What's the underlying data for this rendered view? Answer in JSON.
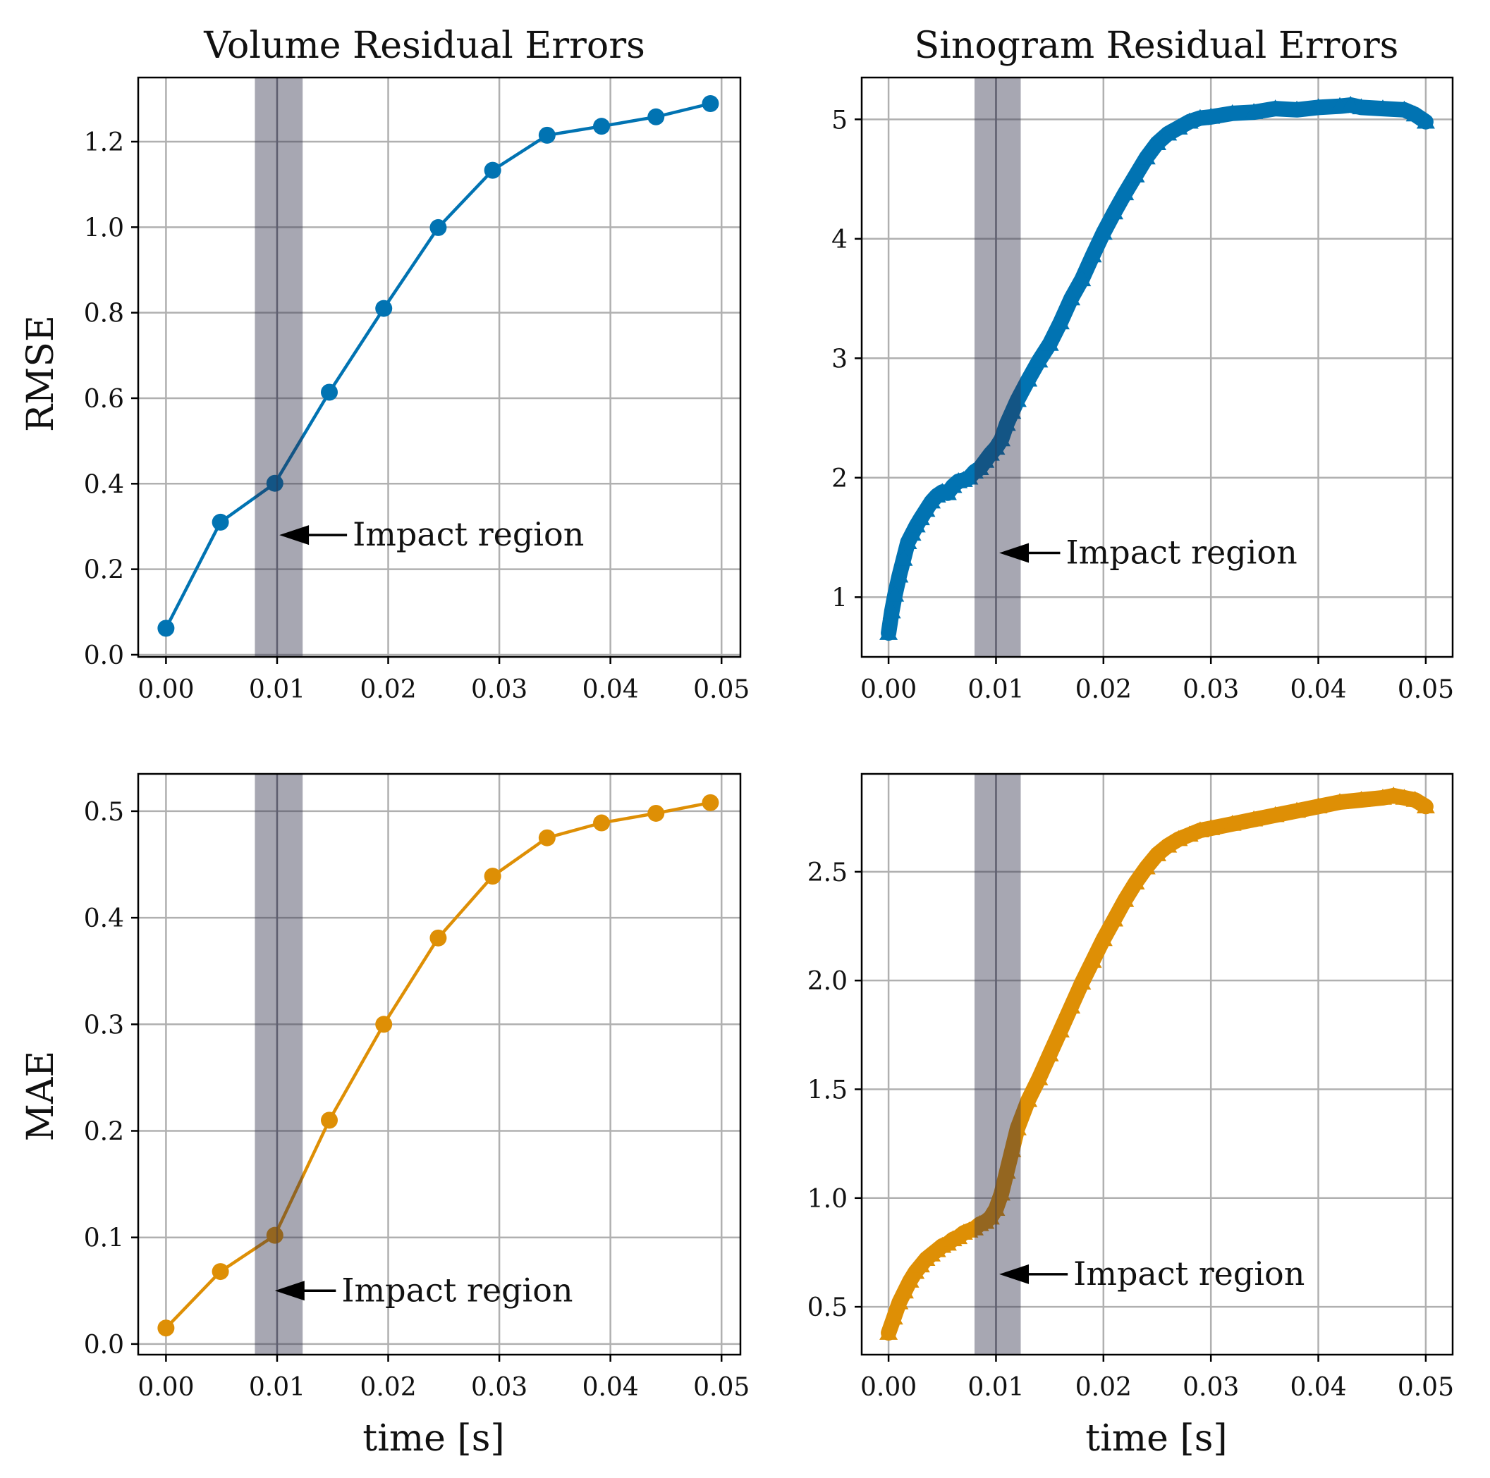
{
  "figure": {
    "shared_xlabel": "time [s]",
    "row_ylabels": [
      "RMSE",
      "MAE"
    ],
    "column_titles": [
      "Volume Residual Errors",
      "Sinogram Residual Errors"
    ]
  },
  "colors": {
    "rmse_series": "#0173b2",
    "mae_series": "#de8f05",
    "impact_band": "#2e2e48",
    "grid": "#b0b0b0",
    "axes": "#000000"
  },
  "chart_data": [
    {
      "id": "volume-rmse",
      "type": "line",
      "title": "Volume Residual Errors",
      "xlabel": "",
      "ylabel": "RMSE",
      "marker": "circle",
      "color": "#0173b2",
      "xlim": [
        -0.0025,
        0.0517
      ],
      "ylim": [
        -0.005,
        1.35
      ],
      "xticks": [
        0.0,
        0.01,
        0.02,
        0.03,
        0.04,
        0.05
      ],
      "xtick_labels": [
        "0.00",
        "0.01",
        "0.02",
        "0.03",
        "0.04",
        "0.05"
      ],
      "yticks": [
        0.0,
        0.2,
        0.4,
        0.6,
        0.8,
        1.0,
        1.2
      ],
      "ytick_labels": [
        "0.0",
        "0.2",
        "0.4",
        "0.6",
        "0.8",
        "1.0",
        "1.2"
      ],
      "grid": true,
      "impact_region": [
        0.008,
        0.0123
      ],
      "impact_line": 0.01,
      "annotation": {
        "text": "Impact region",
        "arrow_tip": [
          0.0102,
          0.28
        ],
        "text_x": 0.0168,
        "text_y": 0.28
      },
      "x": [
        0.0,
        0.0049,
        0.0098,
        0.0147,
        0.0196,
        0.0245,
        0.0294,
        0.0343,
        0.0392,
        0.0441,
        0.049
      ],
      "y": [
        0.062,
        0.31,
        0.401,
        0.614,
        0.81,
        0.999,
        1.133,
        1.215,
        1.236,
        1.258,
        1.289
      ]
    },
    {
      "id": "sinogram-rmse",
      "type": "line",
      "title": "Sinogram Residual Errors",
      "xlabel": "",
      "ylabel": "",
      "marker": "triangle",
      "dense": true,
      "color": "#0173b2",
      "xlim": [
        -0.0025,
        0.0525
      ],
      "ylim": [
        0.5,
        5.35
      ],
      "xticks": [
        0.0,
        0.01,
        0.02,
        0.03,
        0.04,
        0.05
      ],
      "xtick_labels": [
        "0.00",
        "0.01",
        "0.02",
        "0.03",
        "0.04",
        "0.05"
      ],
      "yticks": [
        1,
        2,
        3,
        4,
        5
      ],
      "ytick_labels": [
        "1",
        "2",
        "3",
        "4",
        "5"
      ],
      "grid": true,
      "impact_region": [
        0.008,
        0.0123
      ],
      "impact_line": 0.01,
      "annotation": {
        "text": "Impact region",
        "arrow_tip": [
          0.0103,
          1.37
        ],
        "text_x": 0.0165,
        "text_y": 1.37
      },
      "x": [
        0.0,
        0.0003,
        0.0006,
        0.001,
        0.0014,
        0.0018,
        0.0022,
        0.0026,
        0.003,
        0.0035,
        0.004,
        0.0045,
        0.005,
        0.0055,
        0.006,
        0.0065,
        0.007,
        0.0075,
        0.008,
        0.0085,
        0.009,
        0.0095,
        0.01,
        0.0105,
        0.011,
        0.0115,
        0.012,
        0.013,
        0.014,
        0.015,
        0.016,
        0.017,
        0.018,
        0.019,
        0.02,
        0.021,
        0.022,
        0.023,
        0.024,
        0.025,
        0.026,
        0.027,
        0.028,
        0.029,
        0.03,
        0.032,
        0.034,
        0.036,
        0.038,
        0.04,
        0.042,
        0.043,
        0.044,
        0.046,
        0.048,
        0.049,
        0.05
      ],
      "y": [
        0.7,
        0.88,
        1.02,
        1.18,
        1.32,
        1.46,
        1.53,
        1.6,
        1.66,
        1.73,
        1.8,
        1.85,
        1.88,
        1.87,
        1.93,
        1.97,
        1.98,
        2.0,
        2.05,
        2.08,
        2.14,
        2.2,
        2.25,
        2.32,
        2.45,
        2.55,
        2.65,
        2.82,
        2.98,
        3.12,
        3.3,
        3.5,
        3.66,
        3.86,
        4.05,
        4.22,
        4.38,
        4.53,
        4.68,
        4.8,
        4.88,
        4.93,
        4.98,
        5.01,
        5.02,
        5.05,
        5.06,
        5.09,
        5.08,
        5.1,
        5.11,
        5.12,
        5.1,
        5.09,
        5.08,
        5.04,
        4.98
      ]
    },
    {
      "id": "volume-mae",
      "type": "line",
      "title": "",
      "xlabel": "time [s]",
      "ylabel": "MAE",
      "marker": "circle",
      "color": "#de8f05",
      "xlim": [
        -0.0025,
        0.0517
      ],
      "ylim": [
        -0.01,
        0.535
      ],
      "xticks": [
        0.0,
        0.01,
        0.02,
        0.03,
        0.04,
        0.05
      ],
      "xtick_labels": [
        "0.00",
        "0.01",
        "0.02",
        "0.03",
        "0.04",
        "0.05"
      ],
      "yticks": [
        0.0,
        0.1,
        0.2,
        0.3,
        0.4,
        0.5
      ],
      "ytick_labels": [
        "0.0",
        "0.1",
        "0.2",
        "0.3",
        "0.4",
        "0.5"
      ],
      "grid": true,
      "impact_region": [
        0.008,
        0.0123
      ],
      "impact_line": 0.01,
      "annotation": {
        "text": "Impact region",
        "arrow_tip": [
          0.0098,
          0.05
        ],
        "text_x": 0.0158,
        "text_y": 0.05
      },
      "x": [
        0.0,
        0.0049,
        0.0098,
        0.0147,
        0.0196,
        0.0245,
        0.0294,
        0.0343,
        0.0392,
        0.0441,
        0.049
      ],
      "y": [
        0.015,
        0.068,
        0.102,
        0.21,
        0.3,
        0.381,
        0.439,
        0.475,
        0.489,
        0.498,
        0.508
      ]
    },
    {
      "id": "sinogram-mae",
      "type": "line",
      "title": "",
      "xlabel": "time [s]",
      "ylabel": "",
      "marker": "triangle",
      "dense": true,
      "color": "#de8f05",
      "xlim": [
        -0.0025,
        0.0525
      ],
      "ylim": [
        0.28,
        2.95
      ],
      "xticks": [
        0.0,
        0.01,
        0.02,
        0.03,
        0.04,
        0.05
      ],
      "xtick_labels": [
        "0.00",
        "0.01",
        "0.02",
        "0.03",
        "0.04",
        "0.05"
      ],
      "yticks": [
        0.5,
        1.0,
        1.5,
        2.0,
        2.5
      ],
      "ytick_labels": [
        "0.5",
        "1.0",
        "1.5",
        "2.0",
        "2.5"
      ],
      "grid": true,
      "impact_region": [
        0.008,
        0.0123
      ],
      "impact_line": 0.01,
      "annotation": {
        "text": "Impact region",
        "arrow_tip": [
          0.0103,
          0.65
        ],
        "text_x": 0.0172,
        "text_y": 0.65
      },
      "x": [
        0.0,
        0.0005,
        0.001,
        0.0015,
        0.002,
        0.0025,
        0.003,
        0.0035,
        0.004,
        0.0045,
        0.005,
        0.0055,
        0.006,
        0.0065,
        0.007,
        0.0075,
        0.008,
        0.0085,
        0.009,
        0.0095,
        0.01,
        0.0105,
        0.011,
        0.0115,
        0.012,
        0.013,
        0.014,
        0.015,
        0.016,
        0.017,
        0.018,
        0.019,
        0.02,
        0.021,
        0.022,
        0.023,
        0.024,
        0.025,
        0.026,
        0.027,
        0.028,
        0.029,
        0.03,
        0.032,
        0.034,
        0.036,
        0.038,
        0.04,
        0.042,
        0.044,
        0.046,
        0.047,
        0.048,
        0.049,
        0.05
      ],
      "y": [
        0.38,
        0.45,
        0.52,
        0.57,
        0.62,
        0.66,
        0.69,
        0.72,
        0.74,
        0.76,
        0.78,
        0.79,
        0.81,
        0.82,
        0.84,
        0.85,
        0.86,
        0.88,
        0.89,
        0.91,
        0.95,
        1.02,
        1.12,
        1.22,
        1.32,
        1.45,
        1.55,
        1.66,
        1.77,
        1.88,
        1.99,
        2.09,
        2.19,
        2.28,
        2.37,
        2.45,
        2.52,
        2.58,
        2.62,
        2.65,
        2.67,
        2.69,
        2.7,
        2.72,
        2.74,
        2.76,
        2.78,
        2.8,
        2.82,
        2.83,
        2.84,
        2.85,
        2.84,
        2.83,
        2.8
      ]
    }
  ]
}
